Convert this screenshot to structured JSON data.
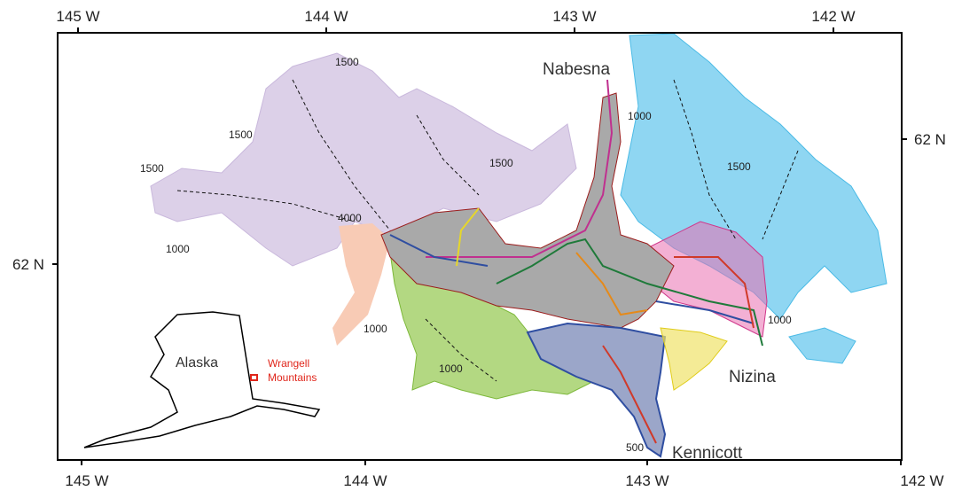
{
  "axes": {
    "top": [
      "145 W",
      "144 W",
      "143 W",
      "142 W"
    ],
    "bottom": [
      "145 W",
      "144 W",
      "143 W",
      "142 W"
    ],
    "left": [
      "62 N"
    ],
    "right": [
      "62 N"
    ]
  },
  "contours": [
    "1500",
    "1500",
    "1500",
    "1500",
    "1000",
    "4000",
    "1000",
    "1000",
    "1000",
    "1500",
    "1000",
    "500"
  ],
  "places": [
    "Nabesna",
    "Nizina",
    "Kennicott"
  ],
  "inset": {
    "label": "Alaska",
    "marker": [
      "Wrangell",
      "Mountains"
    ]
  }
}
